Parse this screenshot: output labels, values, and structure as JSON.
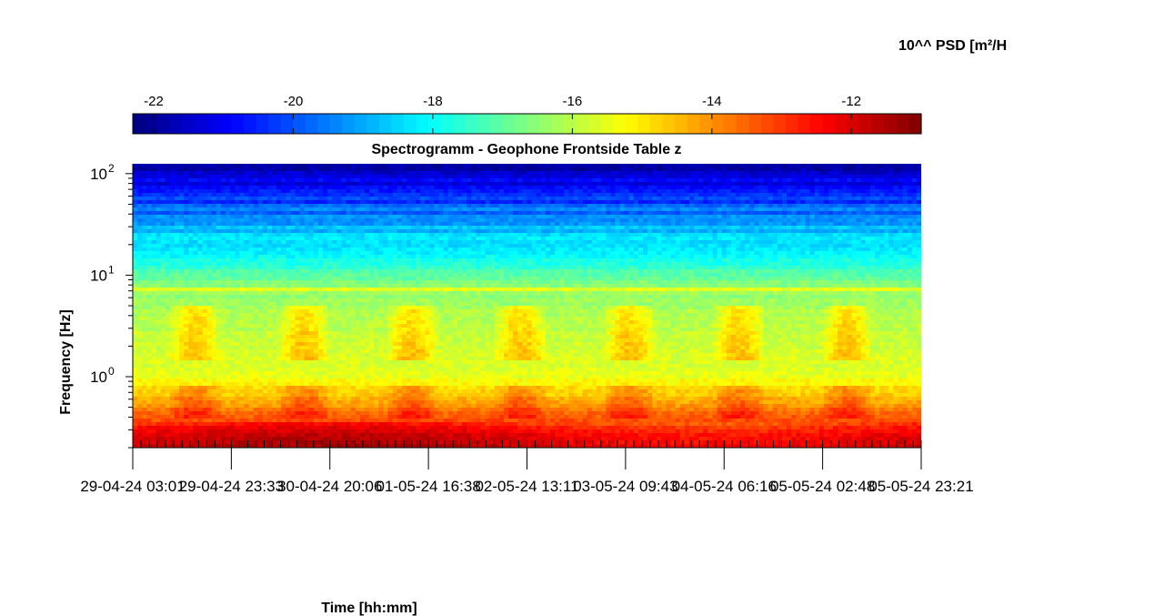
{
  "chart_data": {
    "type": "heatmap",
    "title": "Spectrogramm - Geophone Frontside Table z",
    "xlabel": "Time [hh:mm]",
    "ylabel": "Frequency [Hz]",
    "colorbar_label": "10^^ PSD [m²/H",
    "colormap": "jet",
    "colorbar": {
      "range": [
        -22.3,
        -11
      ],
      "ticks": [
        -22,
        -20,
        -18,
        -16,
        -14,
        -12
      ],
      "tick_labels": [
        "-22",
        "-20",
        "-18",
        "-16",
        "-14",
        "-12"
      ],
      "placement": "top"
    },
    "y_scale": "log",
    "y_range_hz": [
      0.2,
      125
    ],
    "y_ticks": [
      {
        "exp": "0",
        "value": 1
      },
      {
        "exp": "1",
        "value": 10
      },
      {
        "exp": "2",
        "value": 100
      }
    ],
    "x_ticks": [
      "29-04-24 03:01",
      "29-04-24 23:33",
      "30-04-24 20:06",
      "01-05-24 16:38",
      "02-05-24 13:11",
      "03-05-24 09:43",
      "04-05-24 06:16",
      "05-05-24 02:48",
      "05-05-24 23:21"
    ],
    "approx_psd_log10_by_frequency": [
      {
        "freq_hz": 100,
        "value": -21.5
      },
      {
        "freq_hz": 40,
        "value": -19.5
      },
      {
        "freq_hz": 15,
        "value": -18.0
      },
      {
        "freq_hz": 8,
        "value": -16.5
      },
      {
        "freq_hz": 3,
        "value": -16.0
      },
      {
        "freq_hz": 1,
        "value": -15.5
      },
      {
        "freq_hz": 0.5,
        "value": -14.0
      },
      {
        "freq_hz": 0.25,
        "value": -12.0
      }
    ],
    "grid": false,
    "colors": {
      "axis": "#000000",
      "background": "#ffffff"
    }
  }
}
